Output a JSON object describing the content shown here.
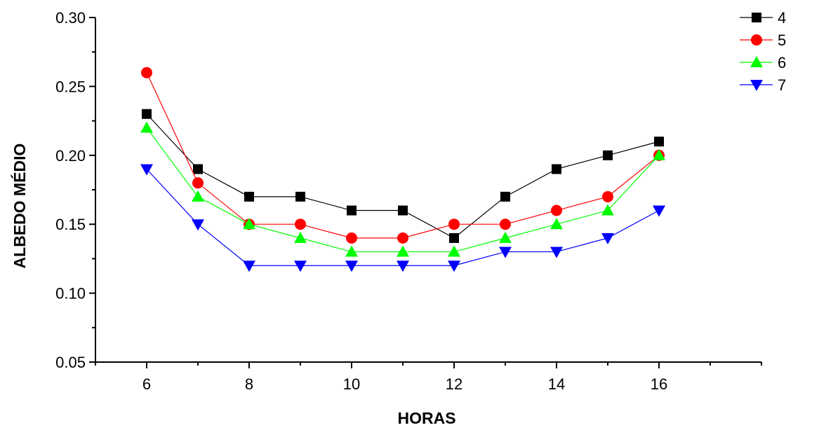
{
  "chart_data": {
    "type": "line",
    "title": "",
    "xlabel": "HORAS",
    "ylabel": "ALBEDO MÉDIO",
    "xlim": [
      5,
      18
    ],
    "ylim": [
      0.05,
      0.3
    ],
    "x_ticks": [
      6,
      8,
      10,
      12,
      14,
      16
    ],
    "x_tick_labels": [
      "6",
      "8",
      "10",
      "12",
      "14",
      "16"
    ],
    "x_minor_ticks": [
      5,
      7,
      9,
      11,
      13,
      15,
      17,
      18
    ],
    "y_ticks": [
      0.05,
      0.1,
      0.15,
      0.2,
      0.25,
      0.3
    ],
    "y_tick_labels": [
      "0.05",
      "0.10",
      "0.15",
      "0.20",
      "0.25",
      "0.30"
    ],
    "y_minor_ticks": [
      0.075,
      0.125,
      0.175,
      0.225,
      0.275
    ],
    "grid": false,
    "legend_position": "top-right",
    "x": [
      6,
      7,
      8,
      9,
      10,
      11,
      12,
      13,
      14,
      15,
      16
    ],
    "series": [
      {
        "name": "4",
        "color": "#000000",
        "marker": "square",
        "values": [
          0.23,
          0.19,
          0.17,
          0.17,
          0.16,
          0.16,
          0.14,
          0.17,
          0.19,
          0.2,
          0.21
        ]
      },
      {
        "name": "5",
        "color": "#ff0000",
        "marker": "circle",
        "values": [
          0.26,
          0.18,
          0.15,
          0.15,
          0.14,
          0.14,
          0.15,
          0.15,
          0.16,
          0.17,
          0.2
        ]
      },
      {
        "name": "6",
        "color": "#00ff00",
        "marker": "triangle-up",
        "values": [
          0.22,
          0.17,
          0.15,
          0.14,
          0.13,
          0.13,
          0.13,
          0.14,
          0.15,
          0.16,
          0.2
        ]
      },
      {
        "name": "7",
        "color": "#0000ff",
        "marker": "triangle-down",
        "values": [
          0.19,
          0.15,
          0.12,
          0.12,
          0.12,
          0.12,
          0.12,
          0.13,
          0.13,
          0.14,
          0.16
        ]
      }
    ]
  }
}
